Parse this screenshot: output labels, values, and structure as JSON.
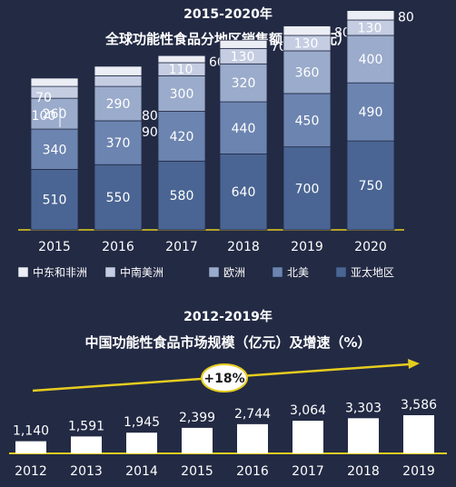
{
  "chart_data": [
    {
      "type": "bar",
      "stacked": true,
      "title": "2015-2020年",
      "subtitle": "全球功能性食品分地区销售额（亿美元）",
      "categories": [
        "2015",
        "2016",
        "2017",
        "2018",
        "2019",
        "2020"
      ],
      "series": [
        {
          "name": "亚太地区",
          "values": [
            510,
            550,
            580,
            640,
            700,
            750
          ],
          "color": "#4a6593"
        },
        {
          "name": "北美",
          "values": [
            340,
            370,
            420,
            440,
            450,
            490
          ],
          "color": "#6c84b0"
        },
        {
          "name": "欧洲",
          "values": [
            260,
            290,
            300,
            320,
            360,
            400
          ],
          "color": "#9aabcb"
        },
        {
          "name": "中南美洲",
          "values": [
            100,
            90,
            110,
            130,
            130,
            130
          ],
          "color": "#c4cde2"
        },
        {
          "name": "中东和非洲",
          "values": [
            70,
            80,
            60,
            70,
            80,
            80
          ],
          "color": "#eceef5"
        }
      ],
      "legend": "bottom"
    },
    {
      "type": "bar",
      "title": "2012-2019年",
      "subtitle": "中国功能性食品市场规模（亿元）及增速（%）",
      "categories": [
        "2012",
        "2013",
        "2014",
        "2015",
        "2016",
        "2017",
        "2018",
        "2019"
      ],
      "values": [
        1140,
        1591,
        1945,
        2399,
        2744,
        3064,
        3303,
        3586
      ],
      "value_labels": [
        "1,140",
        "1,591",
        "1,945",
        "2,399",
        "2,744",
        "3,064",
        "3,303",
        "3,586"
      ],
      "annotation": "+18%",
      "colors": {
        "bar": "#ffffff",
        "arrow": "#e5cc1f",
        "axis": "#e5cc1f"
      }
    }
  ]
}
